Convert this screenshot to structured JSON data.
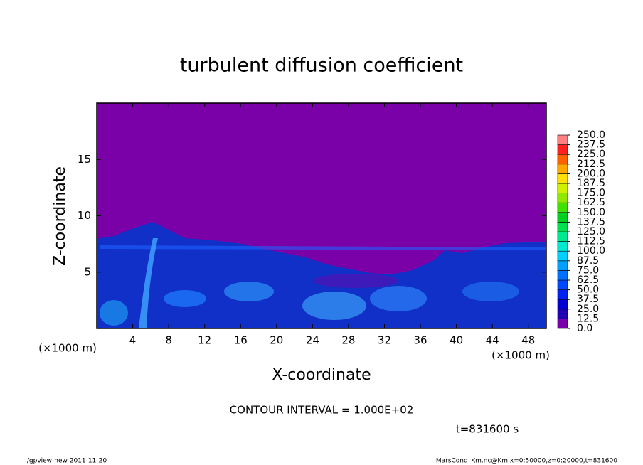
{
  "chart_data": {
    "type": "contour",
    "title": "turbulent diffusion coefficient",
    "x_label": "X-coordinate",
    "y_label": "Z-coordinate",
    "x_unit": "(×1000 m)",
    "y_unit": "(×1000 m)",
    "xlim": [
      0,
      50
    ],
    "ylim": [
      0,
      20
    ],
    "xticks": [
      4,
      8,
      12,
      16,
      20,
      24,
      28,
      32,
      36,
      40,
      44,
      48
    ],
    "yticks": [
      5,
      10,
      15
    ],
    "colorbar": {
      "levels": [
        {
          "value": 0,
          "label": "0.0"
        },
        12.5,
        {
          "value": 25,
          "label": "25.0"
        },
        37.5,
        {
          "value": 50,
          "label": "50.0"
        },
        62.5,
        {
          "value": 75,
          "label": "75.0"
        },
        87.5,
        {
          "value": 100,
          "label": "100.0"
        },
        112.5,
        {
          "value": 125,
          "label": "125.0"
        },
        137.5,
        {
          "value": 150,
          "label": "150.0"
        },
        162.5,
        {
          "value": 175,
          "label": "175.0"
        },
        187.5,
        {
          "value": 200,
          "label": "200.0"
        },
        212.5,
        {
          "value": 225,
          "label": "225.0"
        },
        237.5,
        {
          "value": 250,
          "label": "250.0"
        }
      ],
      "colors": [
        "#7a00a8",
        "#2000b0",
        "#0000d0",
        "#0020f0",
        "#0048ff",
        "#0070ff",
        "#00a0ff",
        "#00d0ff",
        "#00e8d0",
        "#00e890",
        "#00e050",
        "#00d020",
        "#40e000",
        "#90e800",
        "#d0f000",
        "#ffe000",
        "#ffa800",
        "#ff6000",
        "#ff2020",
        "#ff8080"
      ]
    },
    "contour_interval": "CONTOUR INTERVAL = 1.000E+02",
    "time_label": "t=831600 s",
    "footer_left": "./gpview-new  2011-11-20",
    "footer_right": "MarsCond_Km.nc@Km,x=0:50000,z=0:20000,t=831600"
  }
}
